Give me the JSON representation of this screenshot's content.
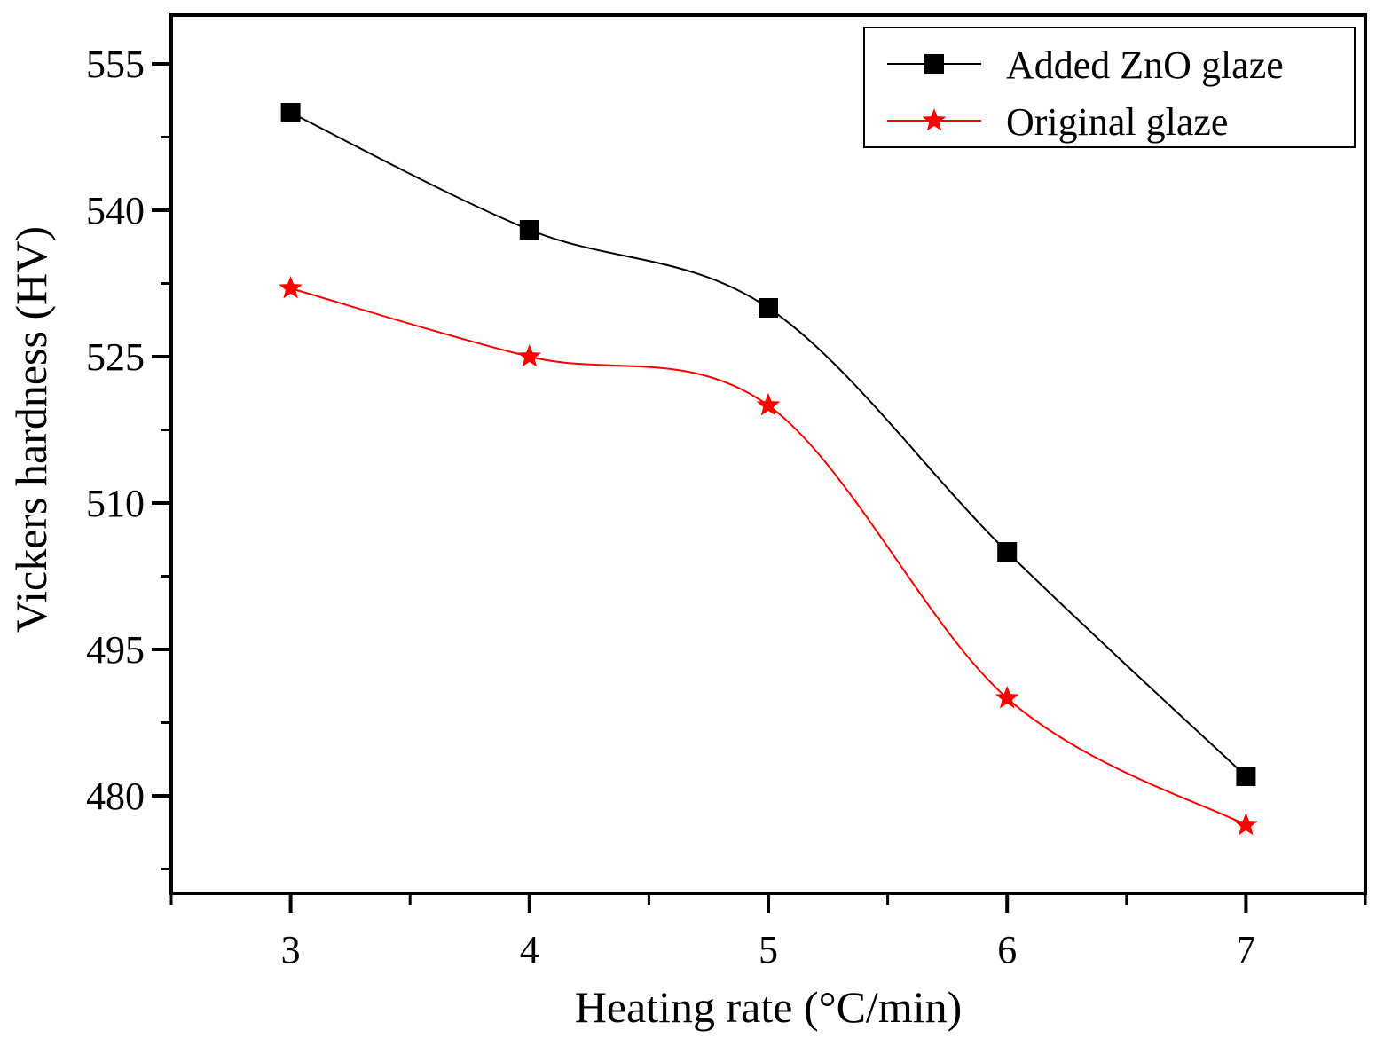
{
  "chart_data": {
    "type": "line",
    "title": "",
    "xlabel": "Heating rate (°C/min)",
    "ylabel": "Vickers hardness (HV)",
    "xlim": [
      2.5,
      7.5
    ],
    "ylim": [
      470,
      560
    ],
    "xticks": [
      3,
      4,
      5,
      6,
      7
    ],
    "xtick_labels": [
      "3",
      "4",
      "5",
      "6",
      "7"
    ],
    "x_minor_ticks": [
      2.5,
      3.5,
      4.5,
      5.5,
      6.5,
      7.5
    ],
    "yticks": [
      480,
      495,
      510,
      525,
      540,
      555
    ],
    "ytick_labels": [
      "480",
      "495",
      "510",
      "525",
      "540",
      "555"
    ],
    "y_minor_ticks": [
      472.5,
      487.5,
      502.5,
      517.5,
      532.5,
      547.5
    ],
    "grid": false,
    "legend_position": "top-right",
    "x": [
      3,
      4,
      5,
      6,
      7
    ],
    "series": [
      {
        "name": "Added ZnO glaze",
        "marker": "square",
        "color": "#000000",
        "values": [
          550,
          538,
          530,
          505,
          482
        ]
      },
      {
        "name": "Original glaze",
        "marker": "star",
        "color": "#ff0000",
        "values": [
          532,
          525,
          520,
          490,
          477
        ]
      }
    ]
  }
}
